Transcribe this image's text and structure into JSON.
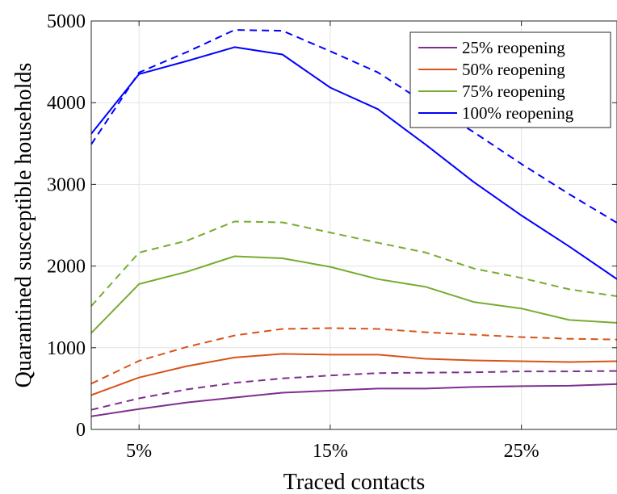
{
  "chart_data": {
    "type": "line",
    "xlabel": "Traced contacts",
    "ylabel": "Quarantined susceptible households",
    "x": [
      2.5,
      5,
      7.5,
      10,
      12.5,
      15,
      17.5,
      20,
      22.5,
      25,
      27.5,
      30
    ],
    "xlim": [
      2.5,
      30
    ],
    "ylim": [
      0,
      5000
    ],
    "x_ticks": [
      {
        "value": 5,
        "label": "5%"
      },
      {
        "value": 15,
        "label": "15%"
      },
      {
        "value": 25,
        "label": "25%"
      }
    ],
    "y_ticks": [
      {
        "value": 0,
        "label": "0"
      },
      {
        "value": 1000,
        "label": "1000"
      },
      {
        "value": 2000,
        "label": "2000"
      },
      {
        "value": 3000,
        "label": "3000"
      },
      {
        "value": 4000,
        "label": "4000"
      },
      {
        "value": 5000,
        "label": "5000"
      }
    ],
    "grid": true,
    "legend_position": "top-right",
    "series": [
      {
        "name": "25% reopening",
        "color": "#7E2F8E",
        "style": "solid",
        "values": [
          160,
          250,
          330,
          390,
          450,
          475,
          500,
          500,
          520,
          530,
          535,
          555
        ]
      },
      {
        "name": "",
        "color": "#7E2F8E",
        "style": "dashed",
        "values": [
          240,
          380,
          490,
          570,
          625,
          660,
          690,
          695,
          700,
          710,
          710,
          715
        ]
      },
      {
        "name": "50% reopening",
        "color": "#D95319",
        "style": "solid",
        "values": [
          420,
          635,
          775,
          880,
          925,
          915,
          915,
          865,
          845,
          835,
          825,
          835
        ]
      },
      {
        "name": "",
        "color": "#D95319",
        "style": "dashed",
        "values": [
          560,
          840,
          1010,
          1150,
          1230,
          1240,
          1230,
          1190,
          1160,
          1130,
          1110,
          1100
        ]
      },
      {
        "name": "75% reopening",
        "color": "#77AC30",
        "style": "solid",
        "values": [
          1180,
          1780,
          1930,
          2120,
          2095,
          1990,
          1840,
          1745,
          1560,
          1480,
          1340,
          1305
        ]
      },
      {
        "name": "",
        "color": "#77AC30",
        "style": "dashed",
        "values": [
          1510,
          2165,
          2310,
          2545,
          2535,
          2410,
          2285,
          2165,
          1970,
          1855,
          1715,
          1630
        ]
      },
      {
        "name": "100% reopening",
        "color": "#0000FF",
        "style": "solid",
        "values": [
          3620,
          4350,
          4510,
          4680,
          4590,
          4185,
          3920,
          3485,
          3030,
          2620,
          2240,
          1840
        ]
      },
      {
        "name": "",
        "color": "#0000FF",
        "style": "dashed",
        "values": [
          3490,
          4370,
          4620,
          4890,
          4880,
          4630,
          4370,
          3990,
          3640,
          3250,
          2880,
          2530
        ]
      }
    ]
  }
}
